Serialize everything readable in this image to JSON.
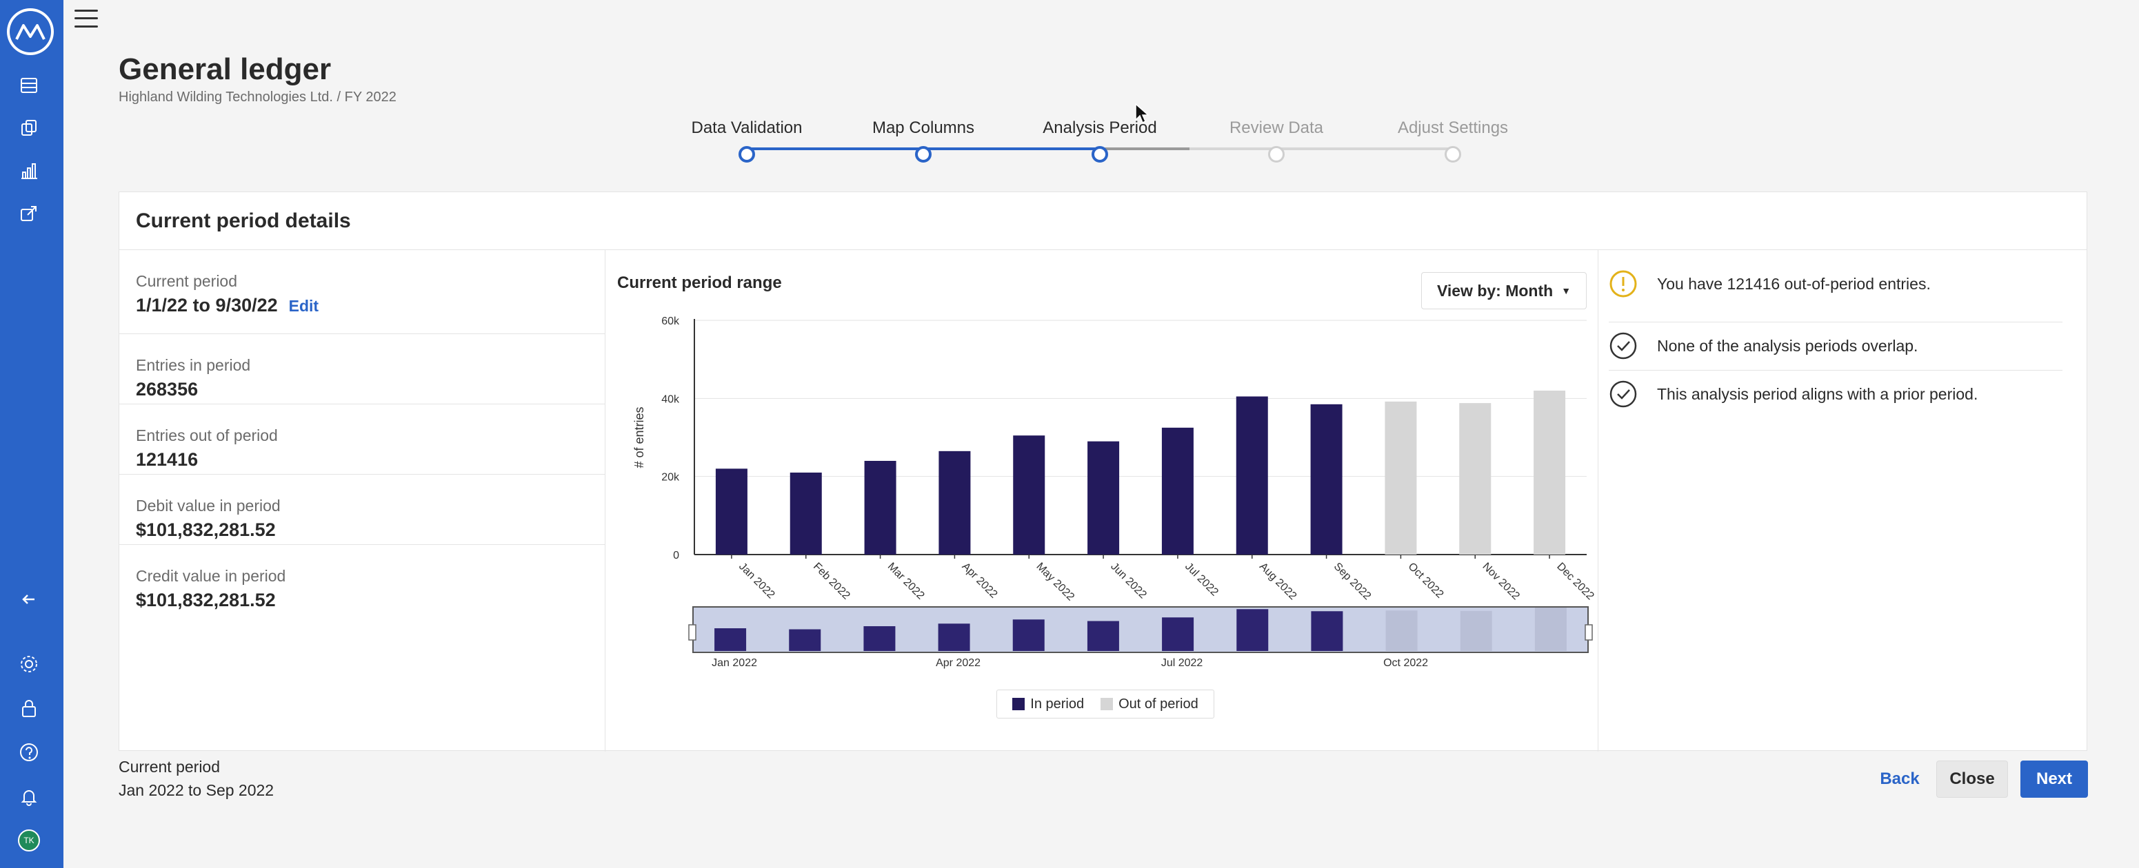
{
  "app": {
    "title": "General ledger",
    "breadcrumb": "Highland Wilding Technologies Ltd. / FY 2022",
    "user_initials": "TK"
  },
  "nav": {
    "icons": [
      "menu-icon",
      "table-icon",
      "documents-icon",
      "bar-chart-icon",
      "export-icon",
      "collapse-arrow-icon",
      "settings-icon",
      "lock-icon",
      "help-icon",
      "bell-icon"
    ]
  },
  "stepper": {
    "steps": [
      {
        "label": "Data Validation",
        "state": "done"
      },
      {
        "label": "Map Columns",
        "state": "done"
      },
      {
        "label": "Analysis Period",
        "state": "current"
      },
      {
        "label": "Review Data",
        "state": "todo"
      },
      {
        "label": "Adjust Settings",
        "state": "todo"
      }
    ]
  },
  "card": {
    "title": "Current period details",
    "stats": [
      {
        "label": "Current period",
        "value": "1/1/22 to 9/30/22",
        "action": "Edit"
      },
      {
        "label": "Entries in period",
        "value": "268356"
      },
      {
        "label": "Entries out of period",
        "value": "121416"
      },
      {
        "label": "Debit value in period",
        "value": "$101,832,281.52"
      },
      {
        "label": "Credit value in period",
        "value": "$101,832,281.52"
      }
    ],
    "range_title": "Current period range",
    "view_by": "View by: Month",
    "legend": {
      "in_period": "In period",
      "out_of_period": "Out of period"
    },
    "messages": [
      {
        "icon": "warning-icon",
        "text": "You have 121416 out-of-period entries."
      },
      {
        "icon": "check-circle-icon",
        "text": "None of the analysis periods overlap."
      },
      {
        "icon": "check-circle-icon",
        "text": "This analysis period aligns with a prior period."
      }
    ]
  },
  "footer": {
    "label": "Current period",
    "value": "Jan 2022 to Sep 2022",
    "back": "Back",
    "close": "Close",
    "next": "Next"
  },
  "colors": {
    "brand": "#2a64c8",
    "in_period": "#231a5c",
    "out_of_period": "#d6d6d6",
    "warning": "#e3b21a"
  },
  "chart_data": {
    "type": "bar",
    "title": "Current period range",
    "ylabel": "# of entries",
    "xlabel": "",
    "categories": [
      "Jan 2022",
      "Feb 2022",
      "Mar 2022",
      "Apr 2022",
      "May 2022",
      "Jun 2022",
      "Jul 2022",
      "Aug 2022",
      "Sep 2022",
      "Oct 2022",
      "Nov 2022",
      "Dec 2022"
    ],
    "values": [
      22000,
      21000,
      24000,
      26500,
      30500,
      29000,
      32500,
      40500,
      38500,
      39200,
      38800,
      42000
    ],
    "in_period": [
      true,
      true,
      true,
      true,
      true,
      true,
      true,
      true,
      true,
      false,
      false,
      false
    ],
    "ylim": [
      0,
      60000
    ],
    "yticks": [
      0,
      20000,
      40000,
      60000
    ],
    "ytick_labels": [
      "0",
      "20k",
      "40k",
      "60k"
    ],
    "grid": true,
    "navigator_labels": [
      "Jan 2022",
      "Apr 2022",
      "Jul 2022",
      "Oct 2022"
    ]
  }
}
